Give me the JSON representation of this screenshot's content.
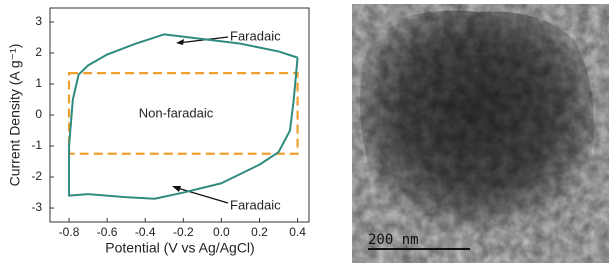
{
  "chart_data": {
    "type": "line",
    "x_label": "Potential (V vs Ag/AgCl)",
    "y_label": "Current Density (A g⁻¹)",
    "x": [
      0.4,
      0.3,
      0.1,
      -0.1,
      -0.3,
      -0.45,
      -0.6,
      -0.7,
      -0.75,
      -0.78,
      -0.8,
      -0.8,
      -0.7,
      -0.5,
      -0.35,
      -0.2,
      0,
      0.2,
      0.3,
      0.36,
      0.38,
      0.4
    ],
    "series": [
      {
        "color": "#2e8b7e",
        "values": [
          1.85,
          2.05,
          2.3,
          2.45,
          2.6,
          2.3,
          1.95,
          1.6,
          1.3,
          0.5,
          -1,
          -2.6,
          -2.55,
          -2.65,
          -2.7,
          -2.5,
          -2.2,
          -1.6,
          -1.2,
          -0.5,
          0.5,
          1.85
        ]
      }
    ],
    "shapes": [
      {
        "type": "rect",
        "x": [
          -0.8,
          0.4
        ],
        "y": [
          -1.25,
          1.35
        ],
        "color": "#f0a030",
        "dashed": true
      }
    ],
    "annotations": [
      "Faradaic",
      "Non-faradaic",
      "Faradaic"
    ],
    "xlim": [
      -0.9,
      0.46
    ],
    "ylim": [
      -3.45,
      3.45
    ],
    "xticks": [
      -0.8,
      -0.6,
      -0.4,
      -0.2,
      {
        "value": 0,
        "label": "0.0"
      },
      0.2,
      0.4
    ],
    "yticks": [
      -3,
      -2,
      -1,
      0,
      1,
      2,
      3
    ]
  },
  "image": {
    "scale_bar": "200 nm"
  }
}
